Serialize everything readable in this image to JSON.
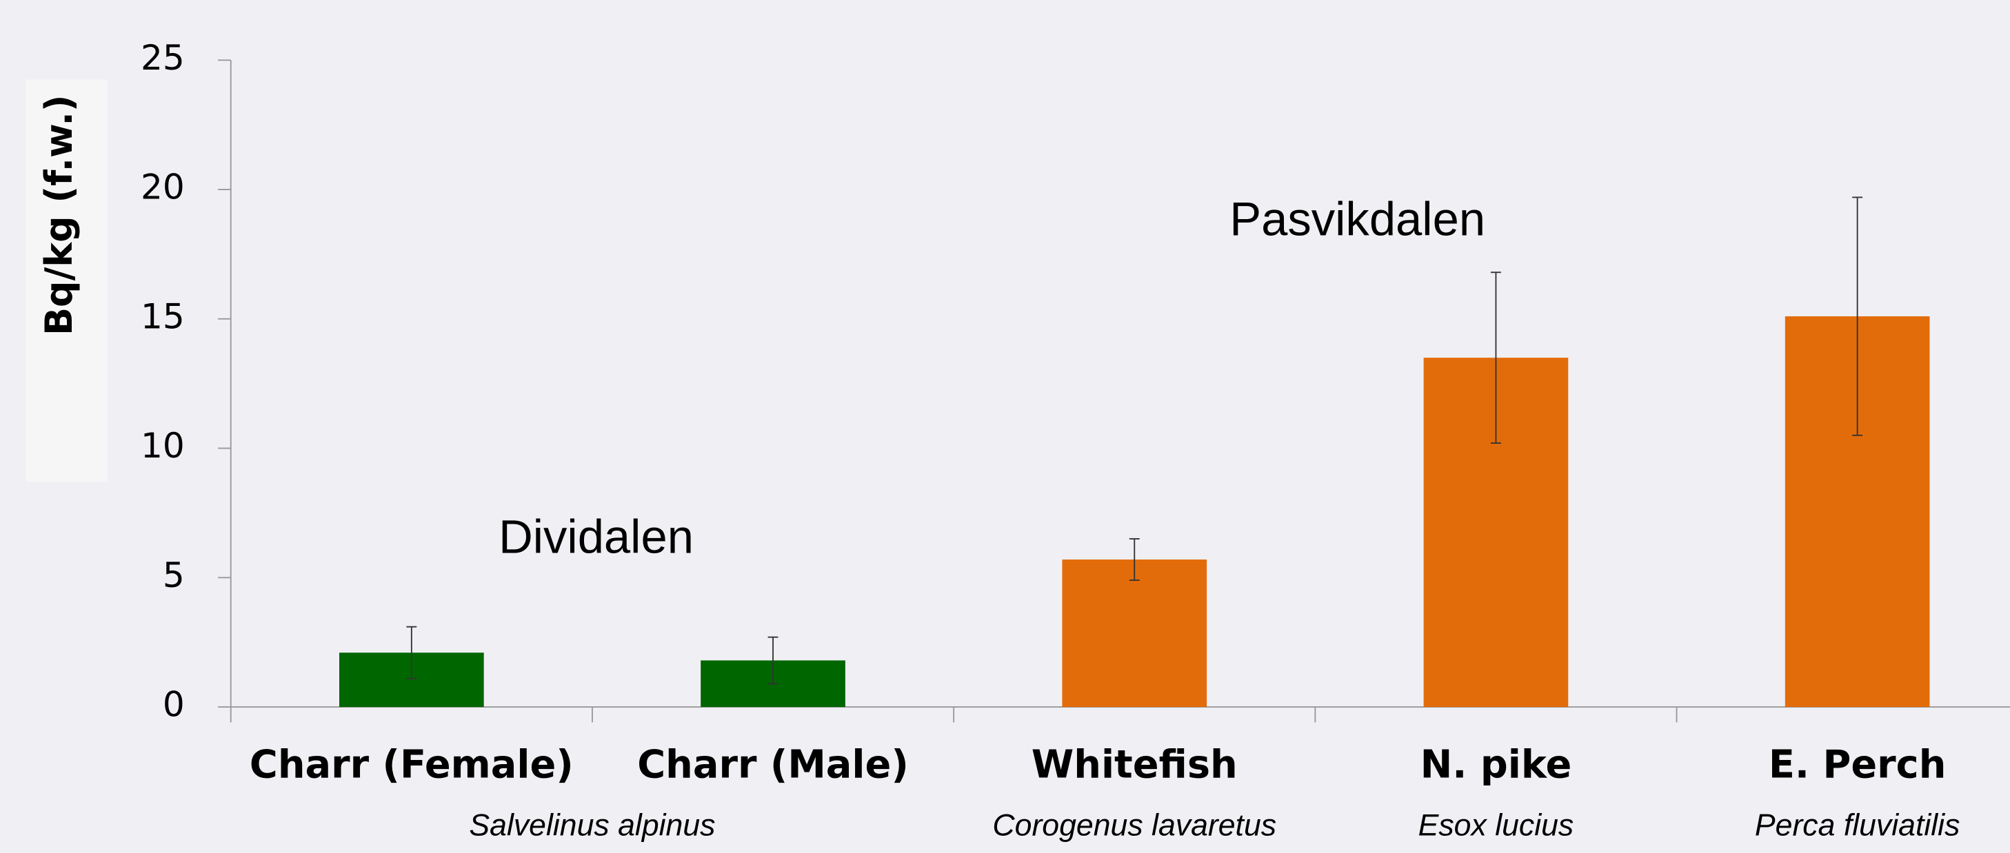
{
  "chart_data": {
    "type": "bar",
    "y_label": "Bq/kg (f.w.)",
    "categories": [
      "Charr (Female)",
      "Charr (Male)",
      "Whitefish",
      "N. pike",
      "E. Perch"
    ],
    "species": [
      "Salvelinus alpinus",
      null,
      "Corogenus lavaretus",
      "Esox lucius",
      "Perca fluviatilis"
    ],
    "values": [
      2.1,
      1.8,
      5.7,
      13.5,
      15.1
    ],
    "errors": [
      1.0,
      0.9,
      0.8,
      3.3,
      4.6
    ],
    "colors": [
      "#006600",
      "#006600",
      "#e36c0a",
      "#e36c0a",
      "#e36c0a"
    ],
    "annotations": [
      "Dividalen",
      "Pasvikdalen"
    ],
    "ylim": [
      0,
      25
    ],
    "yticks": [
      0,
      5,
      10,
      15,
      20,
      25
    ],
    "grid": false
  }
}
